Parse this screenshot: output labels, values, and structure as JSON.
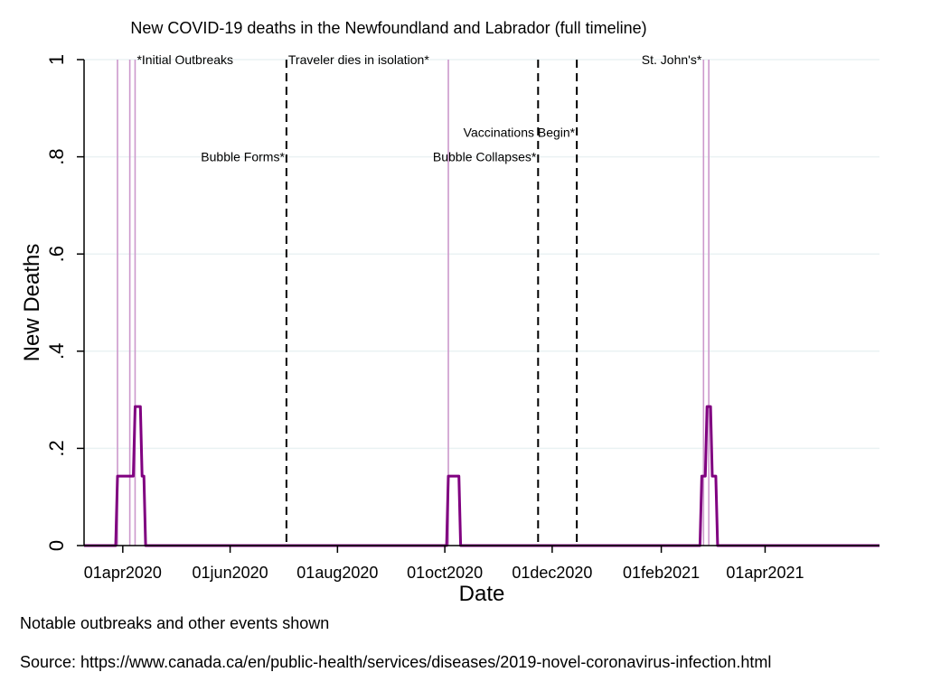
{
  "chart_data": {
    "type": "line",
    "title": "New COVID-19 deaths in the Newfoundland and Labrador (full timeline)",
    "xlabel": "Date",
    "ylabel": "New Deaths",
    "ylim": [
      0,
      1
    ],
    "xlim": [
      "2020-03-10",
      "2021-06-05"
    ],
    "y_ticks": [
      {
        "value": 0,
        "label": "0"
      },
      {
        "value": 0.2,
        "label": ".2"
      },
      {
        "value": 0.4,
        "label": ".4"
      },
      {
        "value": 0.6,
        "label": ".6"
      },
      {
        "value": 0.8,
        "label": ".8"
      },
      {
        "value": 1,
        "label": "1"
      }
    ],
    "x_ticks": [
      {
        "date": "2020-04-01",
        "label": "01apr2020"
      },
      {
        "date": "2020-06-01",
        "label": "01jun2020"
      },
      {
        "date": "2020-08-01",
        "label": "01aug2020"
      },
      {
        "date": "2020-10-01",
        "label": "01oct2020"
      },
      {
        "date": "2020-12-01",
        "label": "01dec2020"
      },
      {
        "date": "2021-02-01",
        "label": "01feb2021"
      },
      {
        "date": "2021-04-01",
        "label": "01apr2021"
      }
    ],
    "grid": true,
    "series": [
      {
        "color": "#800080",
        "points": [
          [
            "2020-03-10",
            0
          ],
          [
            "2020-03-28",
            0
          ],
          [
            "2020-03-29",
            0.143
          ],
          [
            "2020-04-07",
            0.143
          ],
          [
            "2020-04-08",
            0.286
          ],
          [
            "2020-04-11",
            0.286
          ],
          [
            "2020-04-12",
            0.143
          ],
          [
            "2020-04-13",
            0.143
          ],
          [
            "2020-04-14",
            0
          ],
          [
            "2020-10-02",
            0
          ],
          [
            "2020-10-03",
            0.143
          ],
          [
            "2020-10-09",
            0.143
          ],
          [
            "2020-10-10",
            0
          ],
          [
            "2021-02-23",
            0
          ],
          [
            "2021-02-24",
            0.143
          ],
          [
            "2021-02-26",
            0.143
          ],
          [
            "2021-02-27",
            0.286
          ],
          [
            "2021-03-01",
            0.286
          ],
          [
            "2021-03-02",
            0.143
          ],
          [
            "2021-03-04",
            0.143
          ],
          [
            "2021-03-05",
            0
          ],
          [
            "2021-06-05",
            0
          ]
        ]
      }
    ],
    "outbreak_lines": {
      "color": "#cc99cc",
      "dates": [
        "2020-03-29",
        "2020-04-05",
        "2020-04-08",
        "2020-10-03",
        "2021-02-25",
        "2021-02-28"
      ]
    },
    "events": [
      {
        "date": "2020-07-03",
        "label": "Bubble Forms*",
        "y": 0.8,
        "align": "right"
      },
      {
        "date": "2020-07-03",
        "label": "Traveler dies in isolation*",
        "y": 1,
        "align": "left"
      },
      {
        "date": "2020-11-23",
        "label": "Bubble Collapses*",
        "y": 0.8,
        "align": "right"
      },
      {
        "date": "2020-12-15",
        "label": "Vaccinations Begin*",
        "y": 0.85,
        "align": "right"
      }
    ],
    "outbreak_labels": [
      {
        "date": "2020-04-08",
        "label": "*Initial Outbreaks",
        "y": 1,
        "align": "left"
      },
      {
        "date": "2021-02-25",
        "label": "St. John's*",
        "y": 1,
        "align": "right"
      }
    ]
  },
  "colors": {
    "grid": "#eaf2f3",
    "axis": "#000000",
    "event_line": "#000000"
  },
  "notes": {
    "line1": "Notable outbreaks and other events shown",
    "line2": "Source: https://www.canada.ca/en/public-health/services/diseases/2019-novel-coronavirus-infection.html"
  }
}
